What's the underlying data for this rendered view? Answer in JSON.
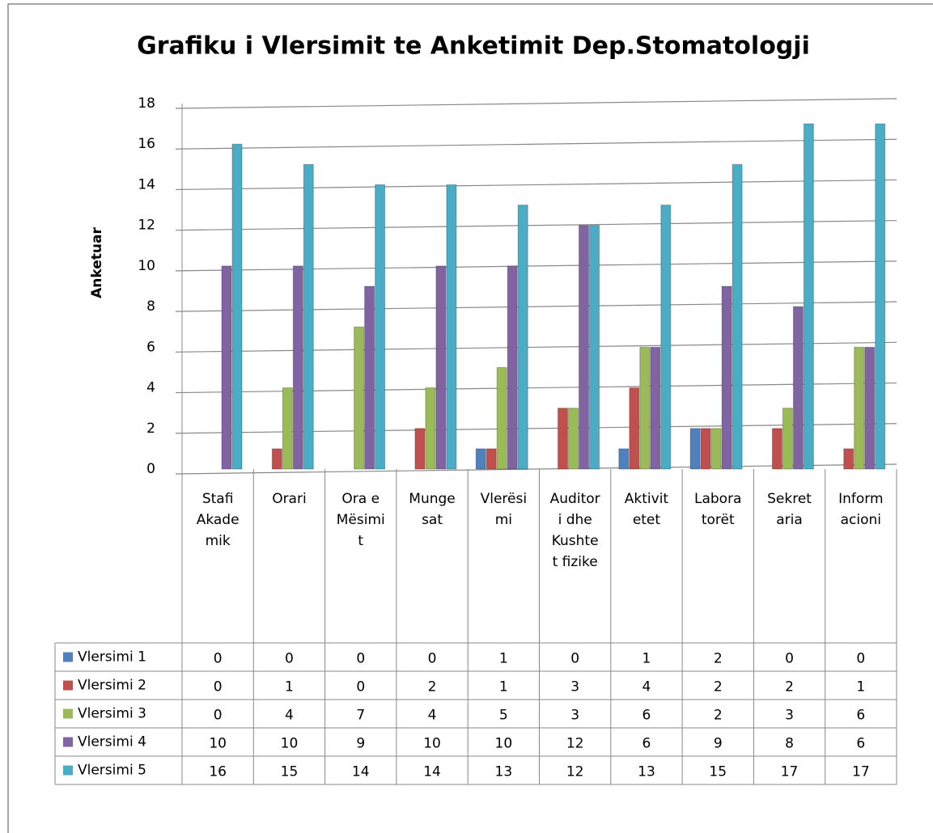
{
  "chart_data": {
    "type": "bar",
    "title": "Grafiku i Vlersimit te Anketimit Dep.Stomatologji",
    "y_label": "Anketuar",
    "categories": [
      "Stafi Akademik",
      "Orari",
      "Ora e Mësimit",
      "Mungesat",
      "Vlerësimi",
      "Auditori dhe Kushtet fizike",
      "Aktivitetet",
      "Laboratorët",
      "Sekretaria",
      "Informacioni"
    ],
    "series": [
      {
        "name": "Vlersimi 1",
        "color": "#4f81bd",
        "values": [
          0,
          0,
          0,
          0,
          1,
          0,
          1,
          2,
          0,
          0
        ]
      },
      {
        "name": "Vlersimi 2",
        "color": "#c0504d",
        "values": [
          0,
          1,
          0,
          2,
          1,
          3,
          4,
          2,
          2,
          1
        ]
      },
      {
        "name": "Vlersimi 3",
        "color": "#9bbb59",
        "values": [
          0,
          4,
          7,
          4,
          5,
          3,
          6,
          2,
          3,
          6
        ]
      },
      {
        "name": "Vlersimi 4",
        "color": "#8064a2",
        "values": [
          10,
          10,
          9,
          10,
          10,
          12,
          6,
          9,
          8,
          6
        ]
      },
      {
        "name": "Vlersimi 5",
        "color": "#4bacc6",
        "values": [
          16,
          15,
          14,
          14,
          13,
          12,
          13,
          15,
          17,
          17
        ]
      }
    ],
    "ylim": [
      0,
      18
    ],
    "yticks": [
      0,
      2,
      4,
      6,
      8,
      10,
      12,
      14,
      16,
      18
    ],
    "grid": true,
    "data_table": true
  }
}
